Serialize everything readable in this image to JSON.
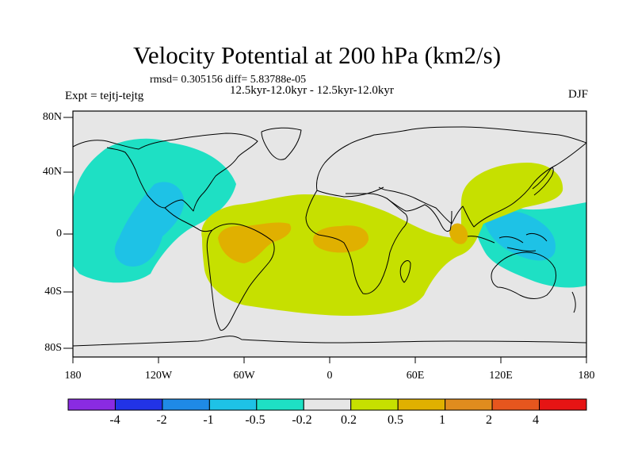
{
  "title": "Velocity Potential at 200 hPa (km2/s)",
  "stats": "rmsd= 0.305156 diff= 5.83788e-05",
  "periods": "12.5kyr-12.0kyr - 12.5kyr-12.0kyr",
  "expt": "Expt = tejtj-tejtg",
  "season": "DJF",
  "map": {
    "lon_range": [
      -180,
      180
    ],
    "lat_range": [
      -90,
      90
    ],
    "x_ticks": [
      "180",
      "120W",
      "60W",
      "0",
      "60E",
      "120E",
      "180"
    ],
    "y_ticks": [
      "80N",
      "40N",
      "0",
      "40S",
      "80S"
    ],
    "background_color": "#e6e6e6",
    "land_outline_color": "#000000"
  },
  "colorbar": {
    "labels": [
      "-4",
      "-2",
      "-1",
      "-0.5",
      "-0.2",
      "0.2",
      "0.5",
      "1",
      "2",
      "4"
    ],
    "colors": [
      "#8a2be2",
      "#2233e6",
      "#1f8ae6",
      "#1ec2e6",
      "#1ee0c4",
      "#e6e6e6",
      "#c6e000",
      "#e0b000",
      "#e08c1e",
      "#e6561e",
      "#e61414"
    ]
  }
}
